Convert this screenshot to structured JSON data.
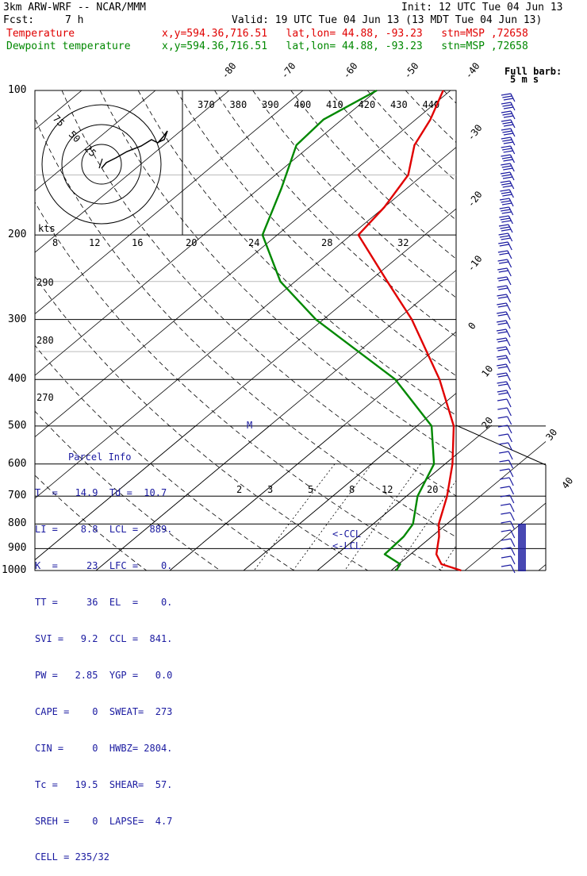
{
  "header": {
    "model": "3km ARW-WRF -- NCAR/MMM",
    "init": "Init: 12 UTC Tue 04 Jun 13",
    "fcst_label": "Fcst:",
    "fcst_value": "7 h",
    "valid": "Valid: 19 UTC Tue 04 Jun 13 (13 MDT Tue 04 Jun 13)",
    "temp_label": "Temperature",
    "temp_loc": "x,y=594.36,716.51   lat,lon= 44.88, -93.23   stn=MSP ,72658",
    "dew_label": "Dewpoint temperature",
    "dew_loc": "x,y=594.36,716.51   lat,lon= 44.88, -93.23   stn=MSP ,72658"
  },
  "colors": {
    "temperature": "#e00000",
    "dewpoint": "#008800",
    "parcel_text": "#1a1aa0",
    "grid": "#000000"
  },
  "chart_data": {
    "type": "line",
    "y_axis": "pressure (hPa)",
    "pressure_labels": [
      "100",
      "200",
      "300",
      "400",
      "500",
      "600",
      "700",
      "800",
      "900",
      "1000"
    ],
    "skewed_temp_labels": [
      "-80",
      "-70",
      "-60",
      "-50",
      "-40",
      "-30",
      "-20",
      "-10",
      "0",
      "10",
      "20",
      "30",
      "40"
    ],
    "theta_labels": [
      "370",
      "380",
      "390",
      "400",
      "410",
      "420",
      "430",
      "440"
    ],
    "theta_side_labels": [
      "290",
      "280",
      "270"
    ],
    "wind_speed_labels": [
      "kts",
      "8",
      "12",
      "16",
      "20",
      "24",
      "28",
      "32"
    ],
    "mixing_ratio_labels": [
      "2",
      "3",
      "5",
      "8",
      "12",
      "20"
    ],
    "marker_label": "M",
    "lcl_labels": [
      "<-CCL",
      "<-LCL"
    ],
    "series": [
      {
        "name": "Temperature",
        "points": [
          [
            1000,
            19.5
          ],
          [
            970,
            15.8
          ],
          [
            925,
            13.5
          ],
          [
            850,
            11.0
          ],
          [
            800,
            8.9
          ],
          [
            700,
            5.5
          ],
          [
            600,
            1.0
          ],
          [
            500,
            -5.0
          ],
          [
            400,
            -14.5
          ],
          [
            300,
            -28.0
          ],
          [
            250,
            -37.5
          ],
          [
            200,
            -49.0
          ],
          [
            175,
            -50.0
          ],
          [
            150,
            -52.0
          ],
          [
            130,
            -56.0
          ],
          [
            115,
            -58.0
          ],
          [
            100,
            -61.0
          ]
        ]
      },
      {
        "name": "Dewpoint temperature",
        "points": [
          [
            1000,
            10.7
          ],
          [
            970,
            10.2
          ],
          [
            925,
            6.5
          ],
          [
            850,
            6.2
          ],
          [
            800,
            5.4
          ],
          [
            700,
            1.5
          ],
          [
            600,
            -1.5
          ],
          [
            500,
            -8.0
          ],
          [
            400,
            -20.5
          ],
          [
            300,
            -41.0
          ],
          [
            250,
            -52.0
          ],
          [
            200,
            -62.0
          ],
          [
            160,
            -67.0
          ],
          [
            130,
            -72.0
          ],
          [
            115,
            -72.5
          ],
          [
            100,
            -70.0
          ]
        ]
      }
    ],
    "hodograph": {
      "ring_labels": [
        "75",
        "50",
        "25"
      ],
      "unit_label": "kts"
    },
    "barb_legend": {
      "title": "Full barb:",
      "value": "5 m s"
    }
  },
  "parcel": {
    "title": "Parcel Info",
    "rows": [
      "T  =   14.9  Td =  10.7",
      "LI =    8.8  LCL =  889.",
      "K  =     23  LFC =    0.",
      "TT =     36  EL  =    0.",
      "SVI =   9.2  CCL =  841.",
      "PW =   2.85  YGP =   0.0",
      "CAPE =    0  SWEAT=  273",
      "CIN =     0  HWBZ= 2804.",
      "Tc =   19.5  SHEAR=  57.",
      "SREH =    0  LAPSE=  4.7",
      "CELL = 235/32"
    ]
  }
}
